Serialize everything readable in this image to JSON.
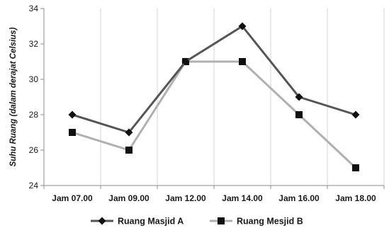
{
  "chart_data": {
    "type": "line",
    "categories": [
      "Jam 07.00",
      "Jam 09.00",
      "Jam 12.00",
      "Jam 14.00",
      "Jam 16.00",
      "Jam 18.00"
    ],
    "series": [
      {
        "name": "Ruang Masjid A",
        "values": [
          28,
          27,
          31,
          33,
          29,
          28
        ],
        "color": "#555555",
        "marker": "diamond"
      },
      {
        "name": "Ruang Mesjid B",
        "values": [
          27,
          26,
          31,
          31,
          28,
          25
        ],
        "color": "#b0b0b0",
        "marker": "square"
      }
    ],
    "ylabel": "Suhu Ruang (dalam derajat Celsius)",
    "ylim": [
      24,
      34
    ],
    "yticks": [
      24,
      26,
      28,
      30,
      32,
      34
    ],
    "grid": "vertical",
    "legend": "bottom"
  }
}
